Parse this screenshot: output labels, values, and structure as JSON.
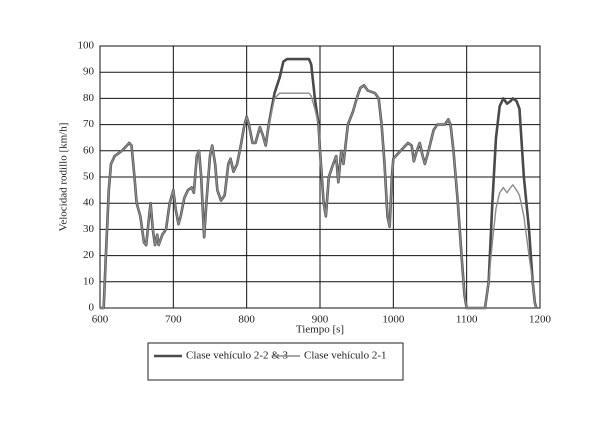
{
  "chart_data": {
    "type": "line",
    "x_label": "Tiempo [s]",
    "y_label": "Velocidad rodillo [km/h]",
    "x": [
      600,
      605,
      608,
      612,
      615,
      620,
      630,
      640,
      643,
      647,
      650,
      655,
      660,
      663,
      667,
      669,
      672,
      675,
      678,
      680,
      685,
      690,
      695,
      700,
      703,
      707,
      710,
      715,
      720,
      725,
      728,
      732,
      735,
      738,
      742,
      745,
      750,
      753,
      757,
      760,
      765,
      770,
      775,
      778,
      782,
      787,
      792,
      797,
      800,
      803,
      808,
      812,
      818,
      822,
      826,
      830,
      838,
      845,
      850,
      855,
      870,
      885,
      888,
      893,
      898,
      900,
      905,
      908,
      912,
      918,
      922,
      925,
      929,
      932,
      938,
      945,
      950,
      955,
      960,
      965,
      975,
      980,
      984,
      988,
      992,
      995,
      998,
      1000,
      1010,
      1020,
      1025,
      1028,
      1032,
      1036,
      1040,
      1043,
      1048,
      1055,
      1060,
      1070,
      1075,
      1078,
      1082,
      1088,
      1093,
      1097,
      1100,
      1125,
      1130,
      1135,
      1140,
      1145,
      1150,
      1155,
      1160,
      1163,
      1168,
      1172,
      1178,
      1185,
      1190,
      1193,
      1195
    ],
    "series": [
      {
        "name": "Clase vehículo 2-2 & 3",
        "color": "#4a4a4a",
        "width": 2.6,
        "values": [
          0,
          0,
          20,
          45,
          55,
          58,
          60,
          63,
          62,
          50,
          40,
          35,
          25,
          24,
          35,
          40,
          30,
          24,
          28,
          24,
          28,
          30,
          40,
          45,
          38,
          32,
          35,
          42,
          45,
          46,
          44,
          58,
          60,
          50,
          27,
          40,
          58,
          62,
          55,
          45,
          41,
          43,
          55,
          57,
          52,
          55,
          62,
          70,
          73,
          70,
          63,
          63,
          69,
          66,
          62,
          70,
          82,
          88,
          94,
          95,
          95,
          95,
          93,
          80,
          70,
          60,
          40,
          35,
          50,
          55,
          58,
          48,
          60,
          55,
          70,
          75,
          80,
          84,
          85,
          83,
          82,
          80,
          70,
          55,
          35,
          31,
          50,
          57,
          60,
          63,
          62,
          56,
          60,
          63,
          58,
          55,
          60,
          68,
          70,
          70,
          72,
          70,
          60,
          40,
          20,
          5,
          0,
          0,
          10,
          40,
          65,
          77,
          80,
          78,
          79,
          80,
          79,
          76,
          50,
          30,
          10,
          2,
          0
        ]
      },
      {
        "name": "Clase vehículo 2-1",
        "color": "#8a8a8a",
        "width": 1.4,
        "values": [
          0,
          0,
          20,
          45,
          55,
          58,
          60,
          63,
          62,
          50,
          40,
          35,
          25,
          24,
          35,
          40,
          30,
          24,
          28,
          24,
          28,
          30,
          40,
          45,
          38,
          32,
          35,
          42,
          45,
          46,
          44,
          58,
          60,
          50,
          27,
          40,
          58,
          62,
          55,
          45,
          41,
          43,
          55,
          57,
          52,
          55,
          62,
          70,
          73,
          70,
          63,
          63,
          69,
          66,
          62,
          70,
          80,
          82,
          82,
          82,
          82,
          82,
          81,
          76,
          70,
          60,
          40,
          35,
          50,
          55,
          58,
          48,
          60,
          55,
          70,
          75,
          80,
          84,
          85,
          83,
          82,
          80,
          70,
          55,
          35,
          31,
          50,
          57,
          60,
          63,
          62,
          56,
          60,
          63,
          58,
          55,
          60,
          68,
          70,
          70,
          72,
          70,
          60,
          40,
          20,
          5,
          0,
          0,
          10,
          25,
          38,
          44,
          46,
          44,
          46,
          47,
          45,
          43,
          35,
          20,
          10,
          2,
          0
        ]
      }
    ],
    "xlim": [
      600,
      1200
    ],
    "xticks": [
      600,
      700,
      800,
      900,
      1000,
      1100,
      1200
    ],
    "ylim": [
      0,
      100
    ],
    "yticks": [
      0,
      10,
      20,
      30,
      40,
      50,
      60,
      70,
      80,
      90,
      100
    ],
    "grid": true
  }
}
